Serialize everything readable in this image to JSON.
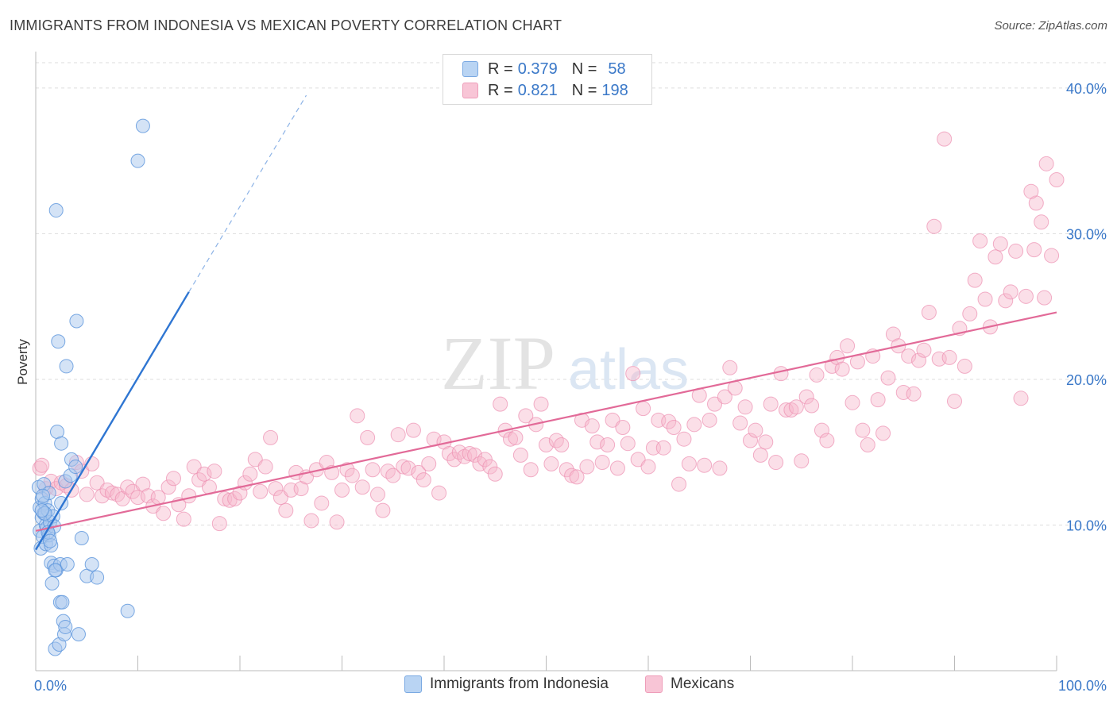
{
  "title": "IMMIGRANTS FROM INDONESIA VS MEXICAN POVERTY CORRELATION CHART",
  "source": "Source: ZipAtlas.com",
  "watermark": {
    "zip": "ZIP",
    "atlas": "atlas"
  },
  "colors": {
    "blue_fill": "#a9c8ee",
    "blue_stroke": "#5b95dc",
    "blue_line": "#2f76d2",
    "pink_fill": "#f6b9cd",
    "pink_stroke": "#ec8fb0",
    "pink_line": "#e26a98",
    "axis_text": "#3a78c8",
    "grid": "#dddddd"
  },
  "legend": {
    "r_label": "R =",
    "n_label": "N =",
    "series": [
      {
        "r": "0.379",
        "n": "58"
      },
      {
        "r": "0.821",
        "n": "198"
      }
    ]
  },
  "chart_data": {
    "type": "scatter",
    "title": "IMMIGRANTS FROM INDONESIA VS MEXICAN POVERTY CORRELATION CHART",
    "xlabel": "",
    "ylabel": "Poverty",
    "xlim": [
      0,
      100
    ],
    "ylim": [
      0,
      42.5
    ],
    "x_tick_labels": [
      "0.0%",
      "100.0%"
    ],
    "y_ticks": [
      10,
      20,
      30,
      40
    ],
    "y_tick_labels": [
      "10.0%",
      "20.0%",
      "30.0%",
      "40.0%"
    ],
    "grid": true,
    "series": [
      {
        "name": "Immigrants from Indonesia",
        "r": 0.379,
        "n": 58,
        "trend": {
          "x0": 0,
          "y0": 8.3,
          "x1": 15,
          "y1": 26.0,
          "dash_to_x": 26.5,
          "dash_to_y": 39.5
        },
        "points": [
          [
            0.3,
            12.6
          ],
          [
            0.4,
            11.2
          ],
          [
            0.4,
            9.6
          ],
          [
            0.5,
            8.4
          ],
          [
            0.6,
            11.8
          ],
          [
            0.6,
            10.5
          ],
          [
            0.7,
            9.2
          ],
          [
            0.8,
            10.8
          ],
          [
            0.8,
            12.8
          ],
          [
            0.9,
            11.5
          ],
          [
            1.0,
            10.0
          ],
          [
            1.0,
            8.7
          ],
          [
            1.1,
            9.8
          ],
          [
            1.2,
            11.0
          ],
          [
            1.3,
            12.2
          ],
          [
            1.3,
            9.3
          ],
          [
            1.4,
            10.2
          ],
          [
            1.5,
            8.6
          ],
          [
            1.5,
            7.4
          ],
          [
            1.6,
            6.0
          ],
          [
            1.7,
            10.6
          ],
          [
            1.8,
            9.9
          ],
          [
            1.8,
            7.2
          ],
          [
            1.9,
            1.5
          ],
          [
            2.0,
            6.9
          ],
          [
            2.1,
            16.4
          ],
          [
            2.0,
            31.6
          ],
          [
            2.2,
            22.6
          ],
          [
            2.3,
            1.8
          ],
          [
            2.4,
            4.7
          ],
          [
            2.4,
            7.3
          ],
          [
            2.5,
            15.6
          ],
          [
            2.5,
            11.5
          ],
          [
            2.6,
            4.7
          ],
          [
            2.7,
            3.4
          ],
          [
            2.8,
            2.5
          ],
          [
            2.9,
            3.0
          ],
          [
            2.9,
            13.0
          ],
          [
            3.0,
            20.9
          ],
          [
            3.1,
            7.3
          ],
          [
            3.4,
            13.4
          ],
          [
            3.5,
            14.5
          ],
          [
            3.9,
            14.0
          ],
          [
            4.0,
            24.0
          ],
          [
            4.2,
            2.5
          ],
          [
            4.5,
            9.1
          ],
          [
            5.0,
            6.5
          ],
          [
            5.5,
            7.3
          ],
          [
            6.0,
            6.4
          ],
          [
            9.0,
            4.1
          ],
          [
            10.0,
            35.0
          ],
          [
            10.5,
            37.4
          ],
          [
            0.9,
            10.8
          ],
          [
            1.2,
            9.5
          ],
          [
            0.6,
            11.0
          ],
          [
            0.7,
            12.0
          ],
          [
            1.4,
            8.9
          ],
          [
            1.9,
            6.9
          ]
        ]
      },
      {
        "name": "Mexicans",
        "r": 0.821,
        "n": 198,
        "trend": {
          "x0": 0,
          "y0": 9.6,
          "x1": 100,
          "y1": 24.6
        },
        "points": [
          [
            0.4,
            13.9
          ],
          [
            0.6,
            14.1
          ],
          [
            1.0,
            12.5
          ],
          [
            1.5,
            13.0
          ],
          [
            2.0,
            12.5
          ],
          [
            2.5,
            12.9
          ],
          [
            3.0,
            12.7
          ],
          [
            3.5,
            12.4
          ],
          [
            4.0,
            14.3
          ],
          [
            4.5,
            13.7
          ],
          [
            5.0,
            12.1
          ],
          [
            5.5,
            14.2
          ],
          [
            6.0,
            12.9
          ],
          [
            6.5,
            12.0
          ],
          [
            7.0,
            12.4
          ],
          [
            7.5,
            12.2
          ],
          [
            8.0,
            12.1
          ],
          [
            8.5,
            11.8
          ],
          [
            9.0,
            12.6
          ],
          [
            9.5,
            12.3
          ],
          [
            10.0,
            11.9
          ],
          [
            10.5,
            12.8
          ],
          [
            11.0,
            12.0
          ],
          [
            11.5,
            11.3
          ],
          [
            12.0,
            11.9
          ],
          [
            12.5,
            10.8
          ],
          [
            13.0,
            12.6
          ],
          [
            13.5,
            13.2
          ],
          [
            14.0,
            11.4
          ],
          [
            14.5,
            10.4
          ],
          [
            15.0,
            12.0
          ],
          [
            15.5,
            14.0
          ],
          [
            16.0,
            13.1
          ],
          [
            16.5,
            13.5
          ],
          [
            17.0,
            12.6
          ],
          [
            17.5,
            13.7
          ],
          [
            18.0,
            10.1
          ],
          [
            18.5,
            11.8
          ],
          [
            19.0,
            11.7
          ],
          [
            19.5,
            11.8
          ],
          [
            20.0,
            12.2
          ],
          [
            20.5,
            12.9
          ],
          [
            21.0,
            13.5
          ],
          [
            21.5,
            14.5
          ],
          [
            22.0,
            12.3
          ],
          [
            22.5,
            14.0
          ],
          [
            23.0,
            16.0
          ],
          [
            23.5,
            12.5
          ],
          [
            24.0,
            11.9
          ],
          [
            24.5,
            11.0
          ],
          [
            25.0,
            12.4
          ],
          [
            25.5,
            13.6
          ],
          [
            26.0,
            12.5
          ],
          [
            26.5,
            13.3
          ],
          [
            27.0,
            10.3
          ],
          [
            27.5,
            13.8
          ],
          [
            28.0,
            11.5
          ],
          [
            28.5,
            14.3
          ],
          [
            29.0,
            13.6
          ],
          [
            29.5,
            10.2
          ],
          [
            30.0,
            12.4
          ],
          [
            30.5,
            13.8
          ],
          [
            31.0,
            13.4
          ],
          [
            31.5,
            17.5
          ],
          [
            32.0,
            12.6
          ],
          [
            32.5,
            16.0
          ],
          [
            33.0,
            13.8
          ],
          [
            33.5,
            12.1
          ],
          [
            34.0,
            11.0
          ],
          [
            34.5,
            13.7
          ],
          [
            35.0,
            13.4
          ],
          [
            35.5,
            16.2
          ],
          [
            36.0,
            14.0
          ],
          [
            36.5,
            13.9
          ],
          [
            37.0,
            16.5
          ],
          [
            37.5,
            13.6
          ],
          [
            38.0,
            13.1
          ],
          [
            38.5,
            14.2
          ],
          [
            39.0,
            15.9
          ],
          [
            39.5,
            12.2
          ],
          [
            40.0,
            15.7
          ],
          [
            40.5,
            14.9
          ],
          [
            41.0,
            14.5
          ],
          [
            41.5,
            15.0
          ],
          [
            42.0,
            14.7
          ],
          [
            42.5,
            14.9
          ],
          [
            43.0,
            14.8
          ],
          [
            43.5,
            14.2
          ],
          [
            44.0,
            14.5
          ],
          [
            44.5,
            14.0
          ],
          [
            45.0,
            13.5
          ],
          [
            45.5,
            18.3
          ],
          [
            46.0,
            16.5
          ],
          [
            46.5,
            15.9
          ],
          [
            47.0,
            16.0
          ],
          [
            47.5,
            14.8
          ],
          [
            48.0,
            17.5
          ],
          [
            48.5,
            13.8
          ],
          [
            49.0,
            16.9
          ],
          [
            49.5,
            18.3
          ],
          [
            50.0,
            15.5
          ],
          [
            50.5,
            14.2
          ],
          [
            51.0,
            15.8
          ],
          [
            51.5,
            15.5
          ],
          [
            52.0,
            13.8
          ],
          [
            52.5,
            13.4
          ],
          [
            53.0,
            13.3
          ],
          [
            53.5,
            17.2
          ],
          [
            54.0,
            14.0
          ],
          [
            54.5,
            16.8
          ],
          [
            55.0,
            15.7
          ],
          [
            55.5,
            14.3
          ],
          [
            56.0,
            15.5
          ],
          [
            56.5,
            17.2
          ],
          [
            57.0,
            13.9
          ],
          [
            57.5,
            16.7
          ],
          [
            58.0,
            15.6
          ],
          [
            58.5,
            20.4
          ],
          [
            59.0,
            14.5
          ],
          [
            59.5,
            18.0
          ],
          [
            60.0,
            14.0
          ],
          [
            60.5,
            15.3
          ],
          [
            61.0,
            17.2
          ],
          [
            61.5,
            15.3
          ],
          [
            62.0,
            17.1
          ],
          [
            62.5,
            16.7
          ],
          [
            63.0,
            12.8
          ],
          [
            63.5,
            15.9
          ],
          [
            64.0,
            14.2
          ],
          [
            64.5,
            16.9
          ],
          [
            65.0,
            18.9
          ],
          [
            65.5,
            14.1
          ],
          [
            66.0,
            17.2
          ],
          [
            66.5,
            18.3
          ],
          [
            67.0,
            13.9
          ],
          [
            67.5,
            18.8
          ],
          [
            68.0,
            20.8
          ],
          [
            68.5,
            19.4
          ],
          [
            69.0,
            17.0
          ],
          [
            69.5,
            18.1
          ],
          [
            70.0,
            15.8
          ],
          [
            70.5,
            16.5
          ],
          [
            71.0,
            14.8
          ],
          [
            71.5,
            15.7
          ],
          [
            72.0,
            18.3
          ],
          [
            72.5,
            14.3
          ],
          [
            73.0,
            20.4
          ],
          [
            73.5,
            17.9
          ],
          [
            74.0,
            17.9
          ],
          [
            74.5,
            18.1
          ],
          [
            75.0,
            14.4
          ],
          [
            75.5,
            18.8
          ],
          [
            76.0,
            18.2
          ],
          [
            76.5,
            20.3
          ],
          [
            77.0,
            16.5
          ],
          [
            77.5,
            15.8
          ],
          [
            78.0,
            20.9
          ],
          [
            78.5,
            21.5
          ],
          [
            79.0,
            20.7
          ],
          [
            79.5,
            22.3
          ],
          [
            80.0,
            18.4
          ],
          [
            80.5,
            21.2
          ],
          [
            81.0,
            16.5
          ],
          [
            81.5,
            15.5
          ],
          [
            82.0,
            21.6
          ],
          [
            82.5,
            18.6
          ],
          [
            83.0,
            16.3
          ],
          [
            83.5,
            20.1
          ],
          [
            84.0,
            23.1
          ],
          [
            84.5,
            22.3
          ],
          [
            85.0,
            19.1
          ],
          [
            85.5,
            21.6
          ],
          [
            86.0,
            19.0
          ],
          [
            86.5,
            21.3
          ],
          [
            87.0,
            22.0
          ],
          [
            87.5,
            24.6
          ],
          [
            88.0,
            30.5
          ],
          [
            88.5,
            21.4
          ],
          [
            89.0,
            36.5
          ],
          [
            89.5,
            21.5
          ],
          [
            90.0,
            18.5
          ],
          [
            90.5,
            23.5
          ],
          [
            91.0,
            20.9
          ],
          [
            91.5,
            24.5
          ],
          [
            92.0,
            26.8
          ],
          [
            92.5,
            29.5
          ],
          [
            93.0,
            25.5
          ],
          [
            93.5,
            23.6
          ],
          [
            94.0,
            28.4
          ],
          [
            94.5,
            29.3
          ],
          [
            95.0,
            25.4
          ],
          [
            95.5,
            26.0
          ],
          [
            96.0,
            28.8
          ],
          [
            97.0,
            25.7
          ],
          [
            98.0,
            32.1
          ],
          [
            98.5,
            30.8
          ],
          [
            99.0,
            34.8
          ],
          [
            99.5,
            28.5
          ],
          [
            100.0,
            33.7
          ],
          [
            96.5,
            18.7
          ],
          [
            97.5,
            32.9
          ],
          [
            97.8,
            28.9
          ],
          [
            98.8,
            25.6
          ]
        ]
      }
    ]
  },
  "bottom_legend": [
    "Immigrants from Indonesia",
    "Mexicans"
  ]
}
